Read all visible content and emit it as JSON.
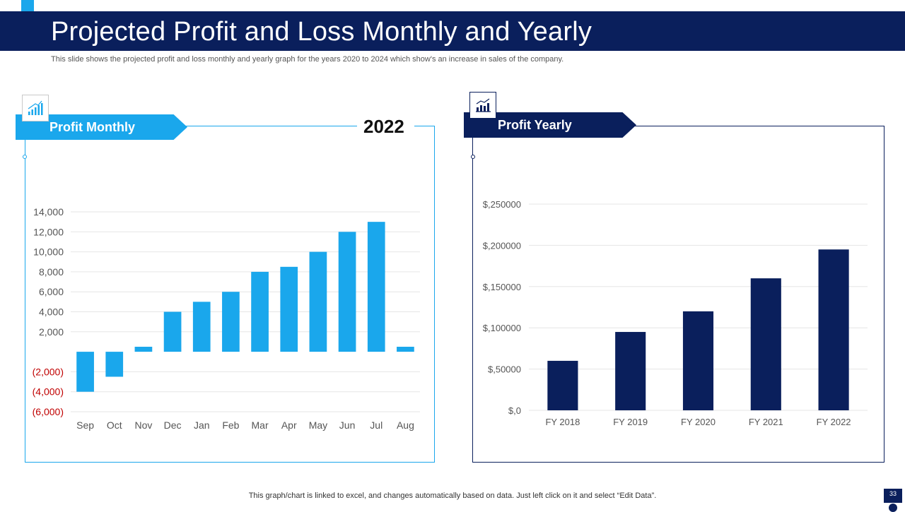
{
  "header": {
    "title": "Projected Profit and Loss Monthly and Yearly",
    "subtitle": "This slide shows the projected profit and loss monthly and yearly graph for the years 2020 to 2024 which show's an increase in sales of the company."
  },
  "left_panel": {
    "label": "Profit Monthly",
    "year": "2022",
    "icon": "bar-chart-growth-icon"
  },
  "right_panel": {
    "label": "Profit Yearly",
    "icon": "bar-chart-icon"
  },
  "footer": {
    "note": "This graph/chart is linked to excel,  and changes automatically based on data. Just left click on it and select “Edit Data”.",
    "page_number": "33"
  },
  "colors": {
    "accent": "#1aa7ec",
    "navy": "#0a1f5c",
    "negative": "#c00000"
  },
  "chart_data": [
    {
      "type": "bar",
      "title": "Profit Monthly",
      "categories": [
        "Sep",
        "Oct",
        "Nov",
        "Dec",
        "Jan",
        "Feb",
        "Mar",
        "Apr",
        "May",
        "Jun",
        "Jul",
        "Aug"
      ],
      "values": [
        -4000,
        -2500,
        500,
        4000,
        5000,
        6000,
        8000,
        8500,
        10000,
        12000,
        13000,
        500
      ],
      "ylim": [
        -6000,
        14000
      ],
      "ticks": [
        14000,
        12000,
        10000,
        8000,
        6000,
        4000,
        2000,
        -2000,
        -4000,
        -6000
      ],
      "tick_labels": [
        "14,000",
        "12,000",
        "10,000",
        "8,000",
        "6,000",
        "4,000",
        "2,000",
        "(2,000)",
        "(4,000)",
        "(6,000)"
      ],
      "bar_color": "#1aa7ec",
      "grid": true,
      "xlabel": "",
      "ylabel": ""
    },
    {
      "type": "bar",
      "title": "Profit Yearly",
      "categories": [
        "FY 2018",
        "FY 2019",
        "FY 2020",
        "FY 2021",
        "FY 2022"
      ],
      "values": [
        60000,
        95000,
        120000,
        160000,
        195000
      ],
      "ylim": [
        0,
        250000
      ],
      "ticks": [
        250000,
        200000,
        150000,
        100000,
        50000,
        0
      ],
      "tick_labels": [
        "$,250000",
        "$,200000",
        "$,150000",
        "$,100000",
        "$,50000",
        "$,0"
      ],
      "bar_color": "#0a1f5c",
      "grid": true,
      "xlabel": "",
      "ylabel": ""
    }
  ]
}
